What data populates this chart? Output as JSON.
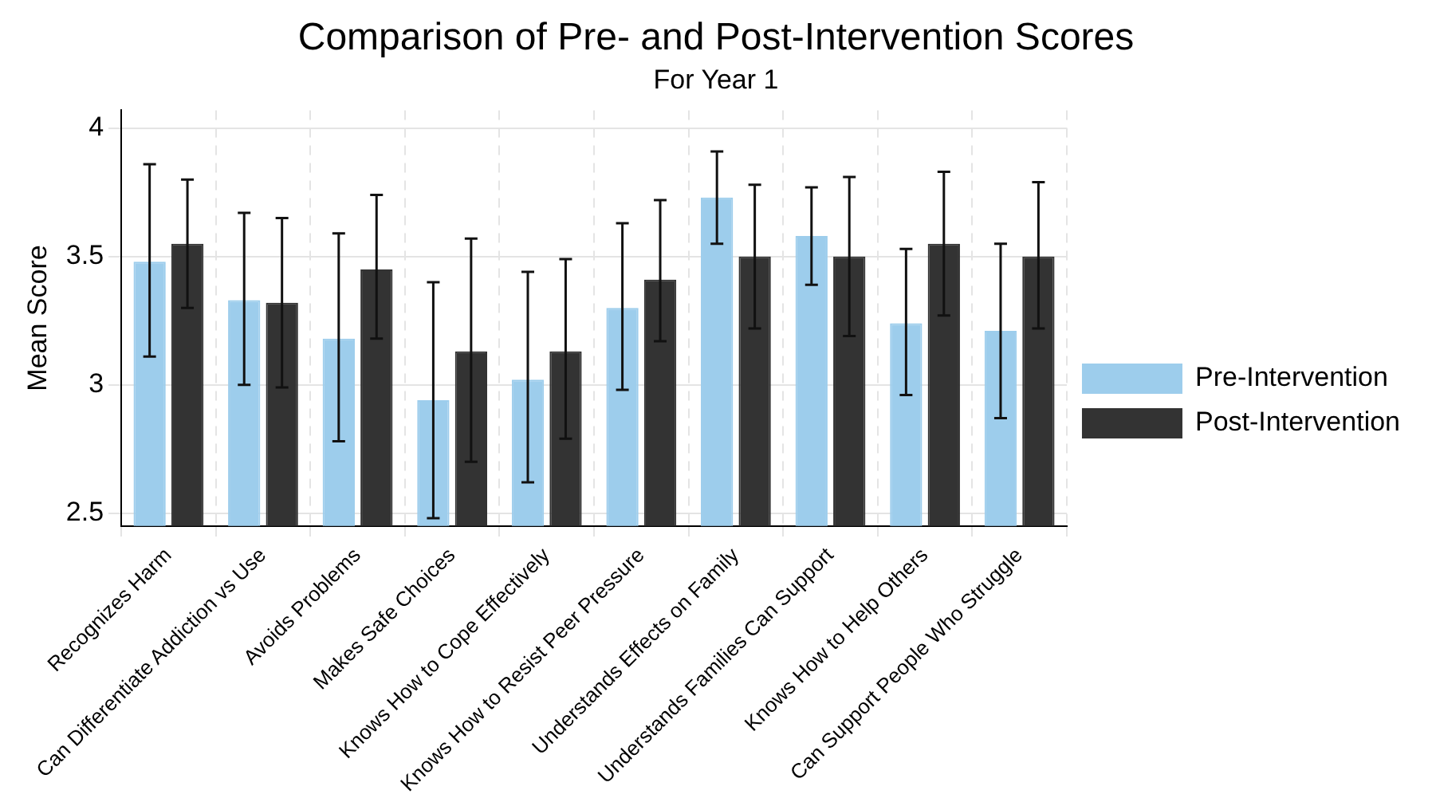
{
  "chart_data": {
    "type": "bar",
    "title": "Comparison of Pre- and Post-Intervention Scores",
    "subtitle": "For Year 1",
    "ylabel": "Mean Score",
    "categories": [
      "Recognizes Harm",
      "Can Differentiate Addiction vs Use",
      "Avoids Problems",
      "Makes Safe Choices",
      "Knows How to Cope Effectively",
      "Knows How to Resist Peer Pressure",
      "Understands Effects on Family",
      "Understands Families Can Support",
      "Knows How to Help Others",
      "Can Support People Who Struggle"
    ],
    "series": [
      {
        "name": "Pre-Intervention",
        "color": "#9dcdec",
        "values": [
          3.48,
          3.33,
          3.18,
          2.94,
          3.02,
          3.3,
          3.73,
          3.58,
          3.24,
          3.21
        ],
        "errors": [
          [
            3.11,
            3.86
          ],
          [
            3.0,
            3.67
          ],
          [
            2.78,
            3.59
          ],
          [
            2.48,
            3.4
          ],
          [
            2.62,
            3.44
          ],
          [
            2.98,
            3.63
          ],
          [
            3.55,
            3.91
          ],
          [
            3.39,
            3.77
          ],
          [
            2.96,
            3.53
          ],
          [
            2.87,
            3.55
          ]
        ]
      },
      {
        "name": "Post-Intervention",
        "color": "#333333",
        "values": [
          3.55,
          3.32,
          3.45,
          3.13,
          3.13,
          3.41,
          3.5,
          3.5,
          3.55,
          3.5
        ],
        "errors": [
          [
            3.3,
            3.8
          ],
          [
            2.99,
            3.65
          ],
          [
            3.18,
            3.74
          ],
          [
            2.7,
            3.57
          ],
          [
            2.79,
            3.49
          ],
          [
            3.17,
            3.72
          ],
          [
            3.22,
            3.78
          ],
          [
            3.19,
            3.81
          ],
          [
            3.27,
            3.83
          ],
          [
            3.22,
            3.79
          ]
        ]
      }
    ],
    "ylim": [
      2.45,
      4.07
    ],
    "yticks": [
      2.5,
      3,
      3.5,
      4
    ],
    "grid": true,
    "legend": "right"
  }
}
